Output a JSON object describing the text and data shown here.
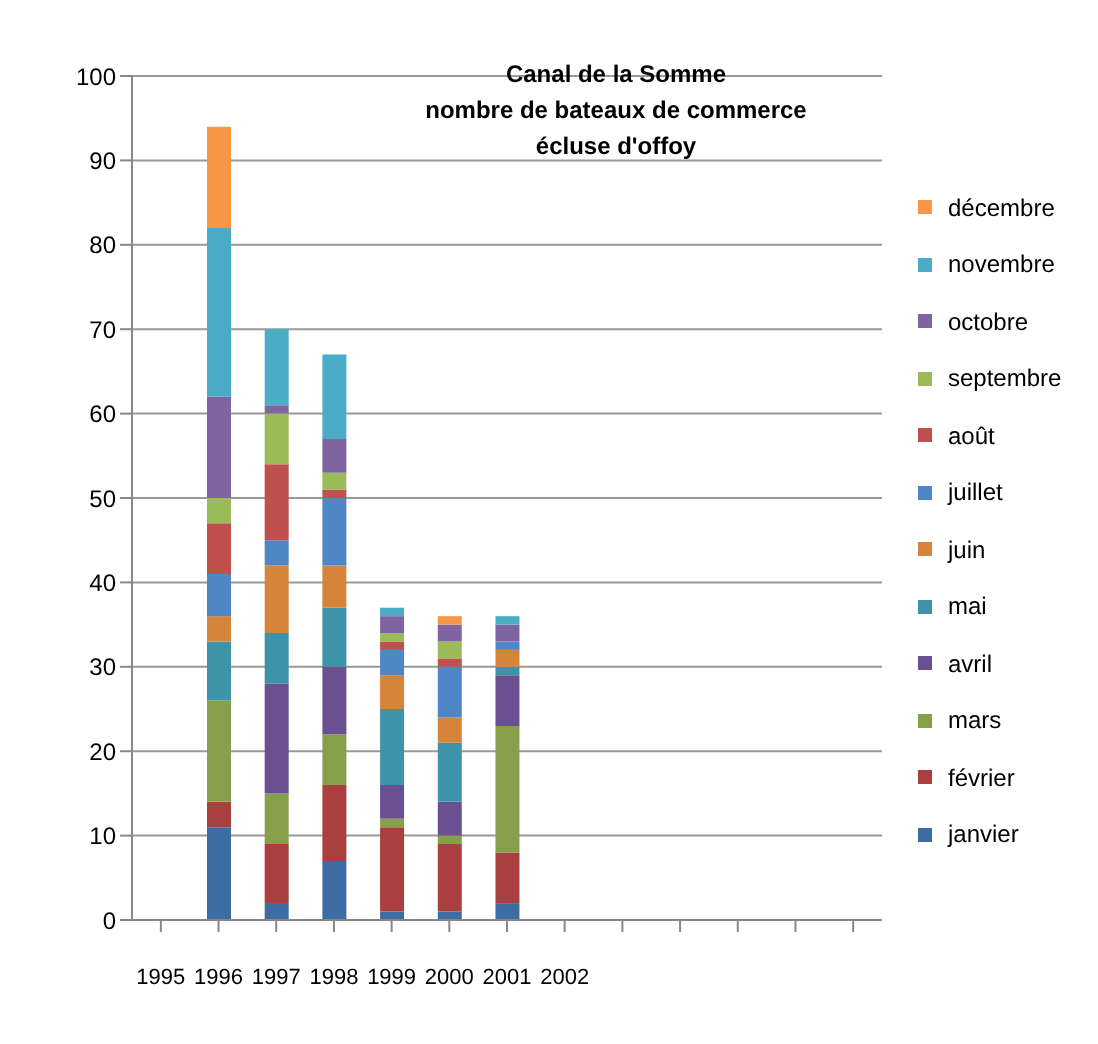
{
  "chart_data": {
    "type": "bar",
    "title": "Canal de la Somme",
    "subtitle": "nombre de bateaux de commerce\nécluse d'offoy",
    "categories": [
      "1995",
      "1996",
      "1997",
      "1998",
      "1999",
      "2000",
      "2001",
      "2002",
      null,
      null,
      null,
      null,
      null
    ],
    "stacked": true,
    "ylim": [
      0,
      100
    ],
    "yticks": [
      0,
      10,
      20,
      30,
      40,
      50,
      60,
      70,
      80,
      90,
      100
    ],
    "grid": "y",
    "legend": "right",
    "series": [
      {
        "name": "janvier",
        "color": "#3d6ca3",
        "values": [
          null,
          11,
          2,
          7,
          1,
          1,
          2,
          null,
          null,
          null,
          null,
          null,
          null
        ]
      },
      {
        "name": "février",
        "color": "#a9403f",
        "values": [
          null,
          3,
          7,
          9,
          10,
          8,
          6,
          null,
          null,
          null,
          null,
          null,
          null
        ]
      },
      {
        "name": "mars",
        "color": "#86a04a",
        "values": [
          null,
          12,
          6,
          6,
          1,
          1,
          15,
          null,
          null,
          null,
          null,
          null,
          null
        ]
      },
      {
        "name": "avril",
        "color": "#6b5091",
        "values": [
          null,
          0,
          13,
          8,
          4,
          4,
          6,
          null,
          null,
          null,
          null,
          null,
          null
        ]
      },
      {
        "name": "mai",
        "color": "#3e93a8",
        "values": [
          null,
          7,
          6,
          7,
          9,
          7,
          1,
          null,
          null,
          null,
          null,
          null,
          null
        ]
      },
      {
        "name": "juin",
        "color": "#d6843a",
        "values": [
          null,
          3,
          8,
          5,
          4,
          3,
          2,
          null,
          null,
          null,
          null,
          null,
          null
        ]
      },
      {
        "name": "juillet",
        "color": "#4f86c6",
        "values": [
          null,
          5,
          3,
          8,
          3,
          6,
          1,
          null,
          null,
          null,
          null,
          null,
          null
        ]
      },
      {
        "name": "août",
        "color": "#c0504d",
        "values": [
          null,
          6,
          9,
          1,
          1,
          1,
          0,
          null,
          null,
          null,
          null,
          null,
          null
        ]
      },
      {
        "name": "septembre",
        "color": "#9bbb59",
        "values": [
          null,
          3,
          6,
          2,
          1,
          2,
          0,
          null,
          null,
          null,
          null,
          null,
          null
        ]
      },
      {
        "name": "octobre",
        "color": "#8064a2",
        "values": [
          null,
          12,
          1,
          4,
          2,
          2,
          2,
          null,
          null,
          null,
          null,
          null,
          null
        ]
      },
      {
        "name": "novembre",
        "color": "#4bacc6",
        "values": [
          null,
          20,
          9,
          10,
          1,
          0,
          1,
          null,
          null,
          null,
          null,
          null,
          null
        ]
      },
      {
        "name": "décembre",
        "color": "#f79646",
        "values": [
          null,
          12,
          0,
          0,
          0,
          1,
          0,
          null,
          null,
          null,
          null,
          null,
          null
        ]
      }
    ]
  }
}
